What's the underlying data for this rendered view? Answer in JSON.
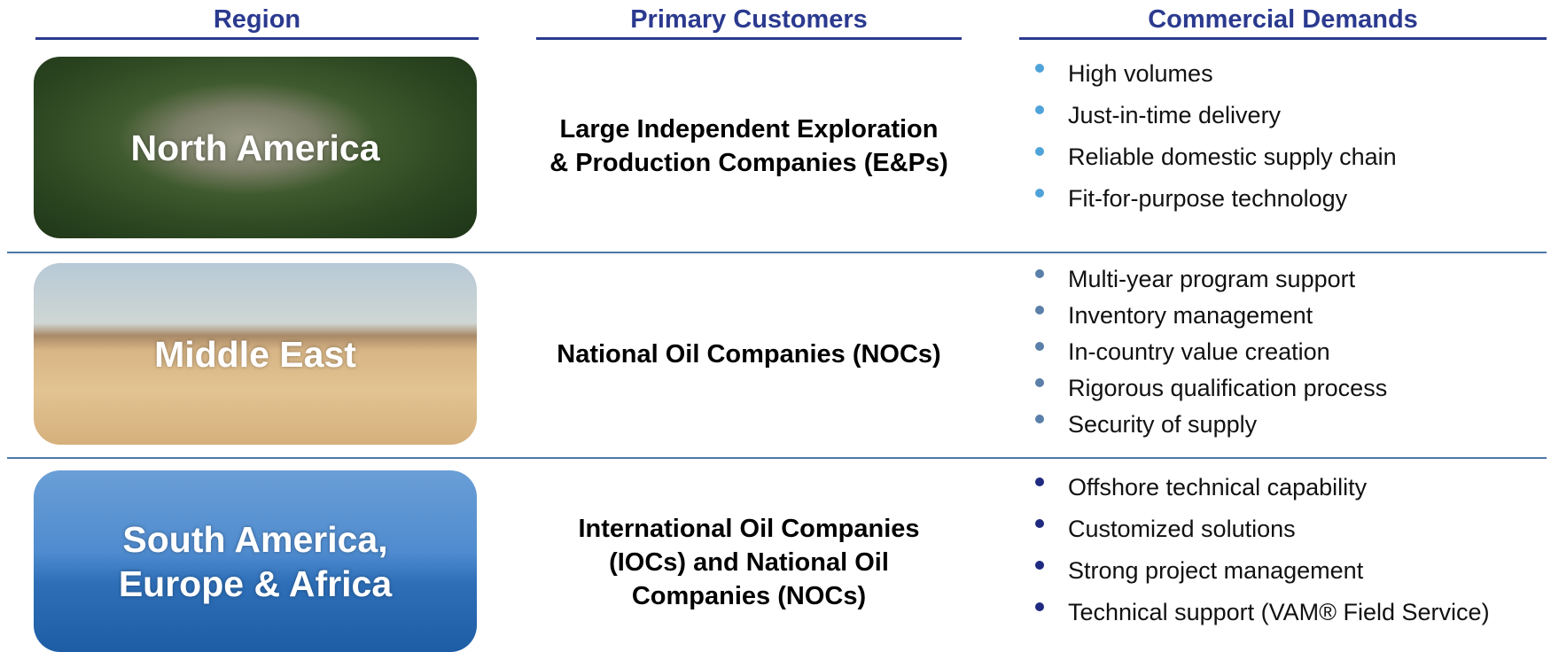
{
  "header": {
    "columns": [
      "Region",
      "Primary Customers",
      "Commercial Demands"
    ]
  },
  "rows": [
    {
      "region": "North America",
      "customers": "Large Independent Exploration & Production Companies (E&Ps)",
      "demands": [
        "High volumes",
        "Just-in-time delivery",
        "Reliable domestic supply chain",
        "Fit-for-purpose technology"
      ]
    },
    {
      "region": "Middle East",
      "customers": "National Oil Companies (NOCs)",
      "demands": [
        "Multi-year program support",
        "Inventory management",
        "In-country value creation",
        "Rigorous qualification process",
        "Security of supply"
      ]
    },
    {
      "region": "South America, Europe & Africa",
      "customers": "International Oil Companies (IOCs) and National Oil Companies (NOCs)",
      "demands": [
        "Offshore technical capability",
        "Customized solutions",
        "Strong project management",
        "Technical support (VAM® Field Service)"
      ]
    }
  ]
}
